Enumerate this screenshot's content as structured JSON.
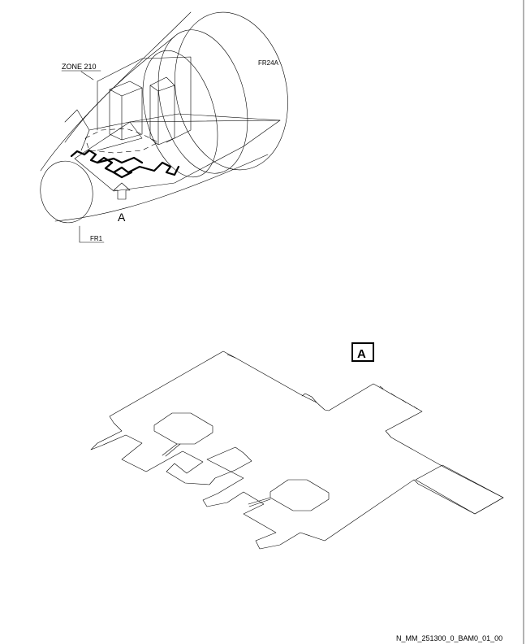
{
  "labels": {
    "zone": "ZONE 210",
    "frame_aft": "FR24A",
    "frame_fwd": "FR1",
    "view_arrow": "A",
    "view_box": "A",
    "drawing_ref": "N_MM_251300_0_BAM0_01_00"
  }
}
